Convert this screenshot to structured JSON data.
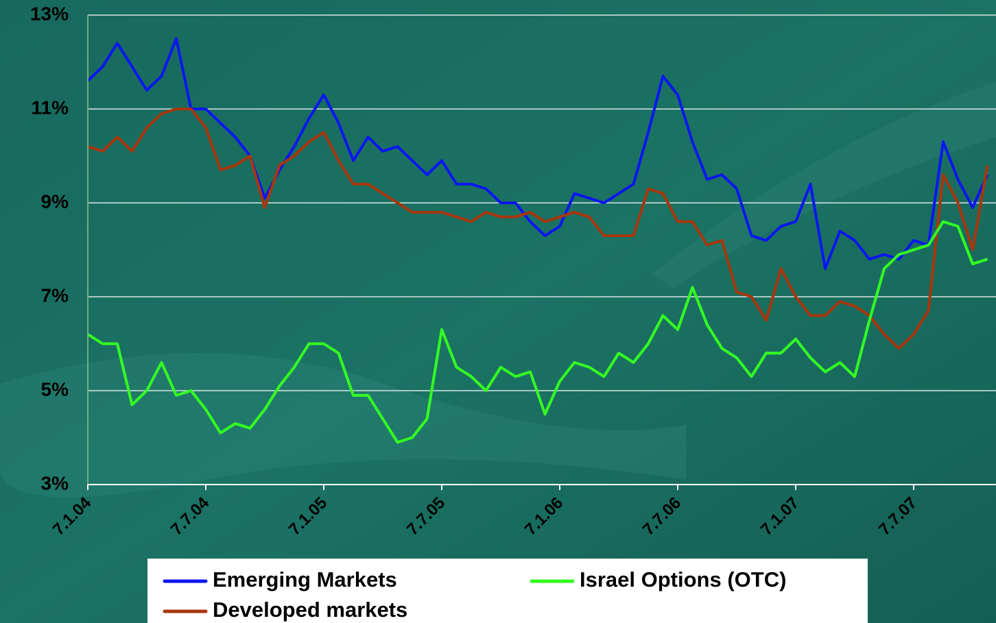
{
  "chart_data": {
    "type": "line",
    "categories": [
      "7.1.04",
      null,
      null,
      null,
      null,
      null,
      null,
      null,
      "7.7.04",
      null,
      null,
      null,
      null,
      null,
      null,
      null,
      "7.1.05",
      null,
      null,
      null,
      null,
      null,
      null,
      null,
      "7.7.05",
      null,
      null,
      null,
      null,
      null,
      null,
      null,
      "7.1.06",
      null,
      null,
      null,
      null,
      null,
      null,
      null,
      "7.7.06",
      null,
      null,
      null,
      null,
      null,
      null,
      null,
      "7.1.07",
      null,
      null,
      null,
      null,
      null,
      null,
      null,
      "7.7.07",
      null,
      null,
      null,
      null,
      null
    ],
    "ylim": [
      3,
      13
    ],
    "yticks": [
      {
        "value": 3,
        "label": "3%"
      },
      {
        "value": 5,
        "label": "5%"
      },
      {
        "value": 7,
        "label": "7%"
      },
      {
        "value": 9,
        "label": "9%"
      },
      {
        "value": 11,
        "label": "11%"
      },
      {
        "value": 13,
        "label": "13%"
      }
    ],
    "grid": true,
    "legend": "bottom",
    "series": [
      {
        "name": "Emerging Markets",
        "color": "#0b16f0",
        "values": [
          11.6,
          11.9,
          12.4,
          11.9,
          11.4,
          11.7,
          12.5,
          11.0,
          11.0,
          10.7,
          10.4,
          10.0,
          9.1,
          9.7,
          10.2,
          10.8,
          11.3,
          10.7,
          9.9,
          10.4,
          10.1,
          10.2,
          9.9,
          9.6,
          9.9,
          9.4,
          9.4,
          9.3,
          9.0,
          9.0,
          8.6,
          8.3,
          8.5,
          9.2,
          9.1,
          9.0,
          9.2,
          9.4,
          10.5,
          11.7,
          11.3,
          10.3,
          9.5,
          9.6,
          9.3,
          8.3,
          8.2,
          8.5,
          8.6,
          9.4,
          7.6,
          8.4,
          8.2,
          7.8,
          7.9,
          7.8,
          8.2,
          8.1,
          10.3,
          9.5,
          8.9,
          9.6
        ]
      },
      {
        "name": "Developed markets",
        "color": "#a8360c",
        "values": [
          10.2,
          10.1,
          10.4,
          10.1,
          10.6,
          10.9,
          11.0,
          11.0,
          10.6,
          9.7,
          9.8,
          10.0,
          8.9,
          9.8,
          10.0,
          10.3,
          10.5,
          9.9,
          9.4,
          9.4,
          9.2,
          9.0,
          8.8,
          8.8,
          8.8,
          8.7,
          8.6,
          8.8,
          8.7,
          8.7,
          8.8,
          8.6,
          8.7,
          8.8,
          8.7,
          8.3,
          8.3,
          8.3,
          9.3,
          9.2,
          8.6,
          8.6,
          8.1,
          8.2,
          7.1,
          7.0,
          6.5,
          7.6,
          7.0,
          6.6,
          6.6,
          6.9,
          6.8,
          6.6,
          6.2,
          5.9,
          6.2,
          6.7,
          9.6,
          9.0,
          8.0,
          9.8
        ]
      },
      {
        "name": "Israel Options (OTC)",
        "color": "#33ff22",
        "values": [
          6.2,
          6.0,
          6.0,
          4.7,
          5.0,
          5.6,
          4.9,
          5.0,
          4.6,
          4.1,
          4.3,
          4.2,
          4.6,
          5.1,
          5.5,
          6.0,
          6.0,
          5.8,
          4.9,
          4.9,
          4.4,
          3.9,
          4.0,
          4.4,
          6.3,
          5.5,
          5.3,
          5.0,
          5.5,
          5.3,
          5.4,
          4.5,
          5.2,
          5.6,
          5.5,
          5.3,
          5.8,
          5.6,
          6.0,
          6.6,
          6.3,
          7.2,
          6.4,
          5.9,
          5.7,
          5.3,
          5.8,
          5.8,
          6.1,
          5.7,
          5.4,
          5.6,
          5.3,
          6.5,
          7.6,
          7.9,
          8.0,
          8.1,
          8.6,
          8.5,
          7.7,
          7.8
        ]
      }
    ]
  }
}
